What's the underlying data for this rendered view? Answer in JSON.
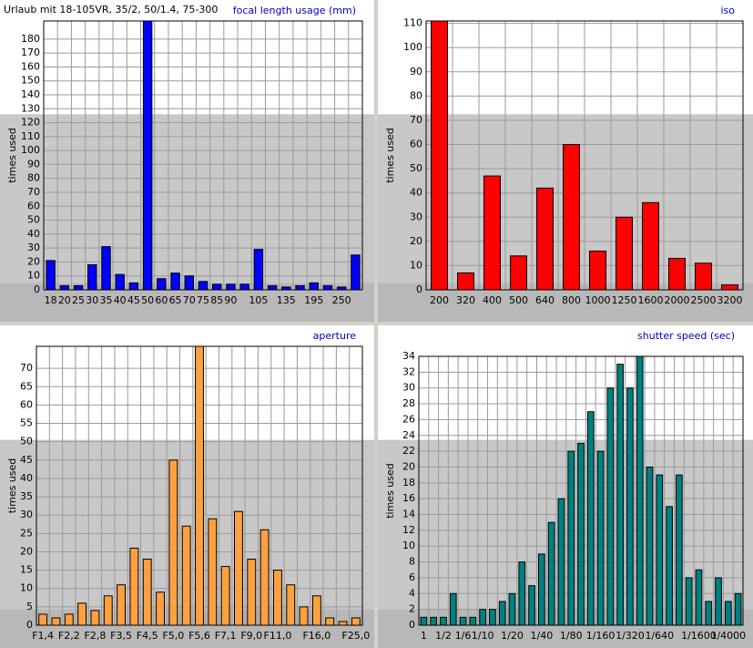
{
  "chart_data": [
    {
      "type": "bar",
      "title": "focal length usage (mm)",
      "subtitle": "Urlaub mit 18-105VR, 35/2, 50/1.4, 75-300",
      "ylabel": "times used",
      "categories": [
        "18",
        "20",
        "25",
        "30",
        "35",
        "40",
        "45",
        "50",
        "60",
        "65",
        "70",
        "75",
        "85",
        "90",
        null,
        "105",
        null,
        "135",
        null,
        "195",
        null,
        "250",
        null
      ],
      "values": [
        21,
        3,
        3,
        18,
        31,
        11,
        5,
        193,
        8,
        12,
        10,
        6,
        4,
        4,
        4,
        29,
        3,
        2,
        3,
        5,
        3,
        2,
        25
      ],
      "color": "#0000ff",
      "ylim": [
        0,
        193
      ],
      "yticks": [
        0,
        10,
        20,
        30,
        40,
        50,
        60,
        70,
        80,
        90,
        100,
        110,
        120,
        130,
        140,
        150,
        160,
        170,
        180
      ],
      "grid": true
    },
    {
      "type": "bar",
      "title": "iso",
      "ylabel": "times used",
      "categories": [
        "200",
        "320",
        "400",
        "500",
        "640",
        "800",
        "1000",
        "1250",
        "1600",
        "2000",
        "2500",
        "3200"
      ],
      "values": [
        111,
        7,
        47,
        14,
        42,
        60,
        16,
        30,
        36,
        13,
        11,
        2
      ],
      "color": "#ff0000",
      "ylim": [
        0,
        111
      ],
      "yticks": [
        0,
        10,
        20,
        30,
        40,
        50,
        60,
        70,
        80,
        90,
        100,
        110
      ],
      "grid": true
    },
    {
      "type": "bar",
      "title": "aperture",
      "ylabel": "times used",
      "categories": [
        "F1,4",
        null,
        "F2,2",
        null,
        "F2,8",
        null,
        "F3,5",
        null,
        "F4,5",
        null,
        "F5,0",
        null,
        "F5,6",
        null,
        "F7,1",
        null,
        "F9,0",
        null,
        "F11,0",
        null,
        null,
        "F16,0",
        null,
        null,
        "F25,0"
      ],
      "values": [
        3,
        2,
        3,
        6,
        4,
        8,
        11,
        21,
        18,
        9,
        45,
        27,
        76,
        29,
        16,
        31,
        18,
        26,
        15,
        11,
        5,
        8,
        2,
        1,
        2
      ],
      "color": "#ffa040",
      "ylim": [
        0,
        76
      ],
      "yticks": [
        0,
        5,
        10,
        15,
        20,
        25,
        30,
        35,
        40,
        45,
        50,
        55,
        60,
        65,
        70
      ],
      "grid": true
    },
    {
      "type": "bar",
      "title": "shutter speed (sec)",
      "ylabel": "times used",
      "categories": [
        "1",
        null,
        "1/2",
        null,
        "1/6",
        null,
        "1/10",
        null,
        null,
        "1/20",
        null,
        null,
        "1/40",
        null,
        null,
        "1/80",
        null,
        null,
        "1/160",
        null,
        null,
        "1/320",
        null,
        null,
        "1/640",
        null,
        null,
        null,
        "1/1600",
        null,
        null,
        "1/4000",
        null
      ],
      "values": [
        1,
        1,
        1,
        4,
        1,
        1,
        2,
        2,
        3,
        4,
        8,
        5,
        9,
        13,
        16,
        22,
        23,
        27,
        22,
        30,
        33,
        30,
        34,
        20,
        19,
        15,
        19,
        6,
        7,
        3,
        6,
        3,
        4
      ],
      "color": "#008080",
      "ylim": [
        0,
        34
      ],
      "yticks": [
        0,
        2,
        4,
        6,
        8,
        10,
        12,
        14,
        16,
        18,
        20,
        22,
        24,
        26,
        28,
        30,
        32,
        34
      ],
      "grid": true
    }
  ]
}
